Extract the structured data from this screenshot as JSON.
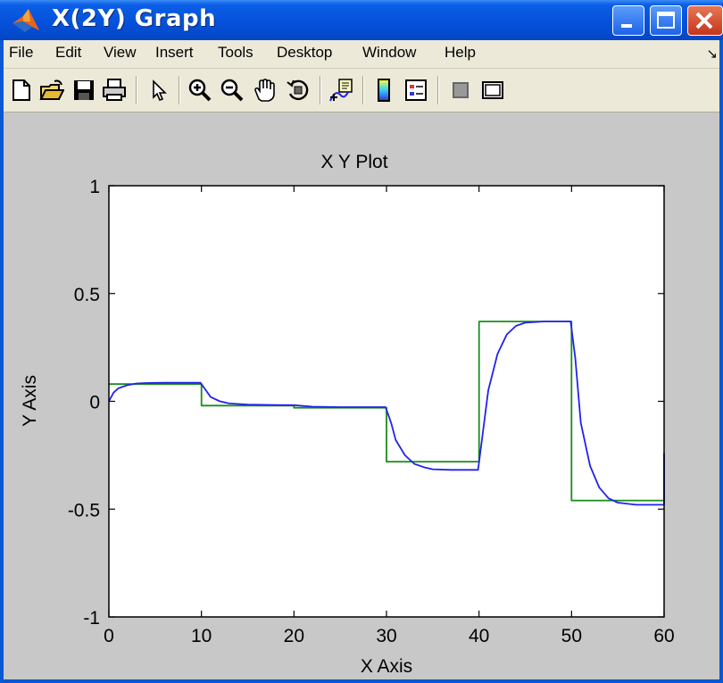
{
  "window": {
    "title": "X(2Y)  Graph"
  },
  "menu": [
    "File",
    "Edit",
    "View",
    "Insert",
    "Tools",
    "Desktop",
    "Window",
    "Help"
  ],
  "toolbar_icons": [
    "new-file-icon",
    "open-folder-icon",
    "save-icon",
    "print-icon",
    "pointer-arrow-icon",
    "zoom-in-icon",
    "zoom-out-icon",
    "pan-hand-icon",
    "rotate-3d-icon",
    "data-cursor-icon",
    "colorbar-icon",
    "legend-icon",
    "hide-plot-tools-icon",
    "show-plot-tools-icon"
  ],
  "colors": {
    "series1": "#2222ee",
    "series2": "#1a8c1a",
    "titlebar": "#0a58d4",
    "figure_bg": "#c8c8c8"
  },
  "chart_data": {
    "type": "line",
    "title": "X Y Plot",
    "xlabel": "X Axis",
    "ylabel": "Y Axis",
    "xlim": [
      0,
      60
    ],
    "ylim": [
      -1,
      1
    ],
    "xticks": [
      0,
      10,
      20,
      30,
      40,
      50,
      60
    ],
    "yticks": [
      -1,
      -0.5,
      0,
      0.5,
      1
    ],
    "xtick_labels": [
      "0",
      "10",
      "20",
      "30",
      "40",
      "50",
      "60"
    ],
    "ytick_labels": [
      "-1",
      "-0.5",
      "0",
      "0.5",
      "1"
    ],
    "grid": false,
    "series": [
      {
        "color": "#1a8c1a",
        "style": "step",
        "x": [
          0,
          10,
          10,
          20,
          20,
          30,
          30,
          40,
          40,
          50,
          50,
          60,
          60
        ],
        "y": [
          0.08,
          0.08,
          -0.02,
          -0.02,
          -0.03,
          -0.03,
          -0.28,
          -0.28,
          0.37,
          0.37,
          -0.46,
          -0.46,
          -0.24
        ]
      },
      {
        "color": "#2222ee",
        "style": "smooth",
        "x": [
          0,
          0.5,
          1,
          2,
          3,
          4,
          6,
          8,
          9.9,
          10.5,
          11,
          12,
          13,
          15,
          18,
          20,
          22,
          25,
          29.9,
          30.5,
          31,
          32,
          33,
          34,
          35,
          37,
          39.9,
          40.4,
          41,
          42,
          43,
          44,
          45,
          47,
          49.9,
          50.4,
          51,
          52,
          53,
          54,
          55,
          57,
          59.9,
          60,
          60
        ],
        "y": [
          0,
          0.04,
          0.06,
          0.075,
          0.083,
          0.085,
          0.086,
          0.086,
          0.086,
          0.05,
          0.02,
          0.0,
          -0.01,
          -0.015,
          -0.017,
          -0.018,
          -0.025,
          -0.027,
          -0.027,
          -0.1,
          -0.18,
          -0.25,
          -0.29,
          -0.305,
          -0.315,
          -0.318,
          -0.318,
          -0.15,
          0.05,
          0.22,
          0.31,
          0.35,
          0.365,
          0.37,
          0.37,
          0.2,
          -0.1,
          -0.3,
          -0.4,
          -0.45,
          -0.47,
          -0.48,
          -0.48,
          -0.48,
          -0.24
        ]
      }
    ]
  }
}
